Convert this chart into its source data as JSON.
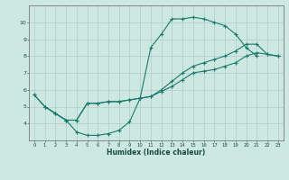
{
  "xlabel": "Humidex (Indice chaleur)",
  "bg_color": "#cce8e0",
  "grid_color": "#b0ccc8",
  "line_color": "#1a7a6e",
  "curve1_x": [
    0,
    1,
    2,
    3,
    4,
    5,
    6,
    7,
    8,
    9,
    10,
    11,
    12,
    13,
    14,
    15,
    16,
    17,
    18,
    19,
    20,
    21
  ],
  "curve1_y": [
    5.7,
    5.0,
    4.6,
    4.2,
    3.5,
    3.3,
    3.3,
    3.4,
    3.6,
    4.1,
    5.5,
    8.5,
    9.3,
    10.2,
    10.2,
    10.3,
    10.2,
    10.0,
    9.8,
    9.3,
    8.5,
    8.0
  ],
  "curve2_x": [
    0,
    1,
    2,
    3,
    4,
    5,
    6,
    7,
    8,
    9,
    10,
    11,
    12,
    13,
    14,
    15,
    16,
    17,
    18,
    19,
    20,
    21,
    22,
    23
  ],
  "curve2_y": [
    5.7,
    5.0,
    4.6,
    4.2,
    4.2,
    5.2,
    5.2,
    5.3,
    5.3,
    5.4,
    5.5,
    5.6,
    5.9,
    6.2,
    6.6,
    7.0,
    7.1,
    7.2,
    7.4,
    7.6,
    8.0,
    8.2,
    8.1,
    8.0
  ],
  "curve3_x": [
    1,
    2,
    3,
    4,
    5,
    6,
    7,
    8,
    9,
    10,
    11,
    12,
    13,
    14,
    15,
    16,
    17,
    18,
    19,
    20,
    21,
    22,
    23
  ],
  "curve3_y": [
    5.0,
    4.6,
    4.2,
    4.2,
    5.2,
    5.2,
    5.3,
    5.3,
    5.4,
    5.5,
    5.6,
    6.0,
    6.5,
    7.0,
    7.4,
    7.6,
    7.8,
    8.0,
    8.3,
    8.7,
    8.7,
    8.1,
    8.0
  ],
  "xlim": [
    -0.5,
    23.5
  ],
  "ylim": [
    3.0,
    11.0
  ],
  "yticks": [
    4,
    5,
    6,
    7,
    8,
    9,
    10
  ],
  "xticks": [
    0,
    1,
    2,
    3,
    4,
    5,
    6,
    7,
    8,
    9,
    10,
    11,
    12,
    13,
    14,
    15,
    16,
    17,
    18,
    19,
    20,
    21,
    22,
    23
  ]
}
